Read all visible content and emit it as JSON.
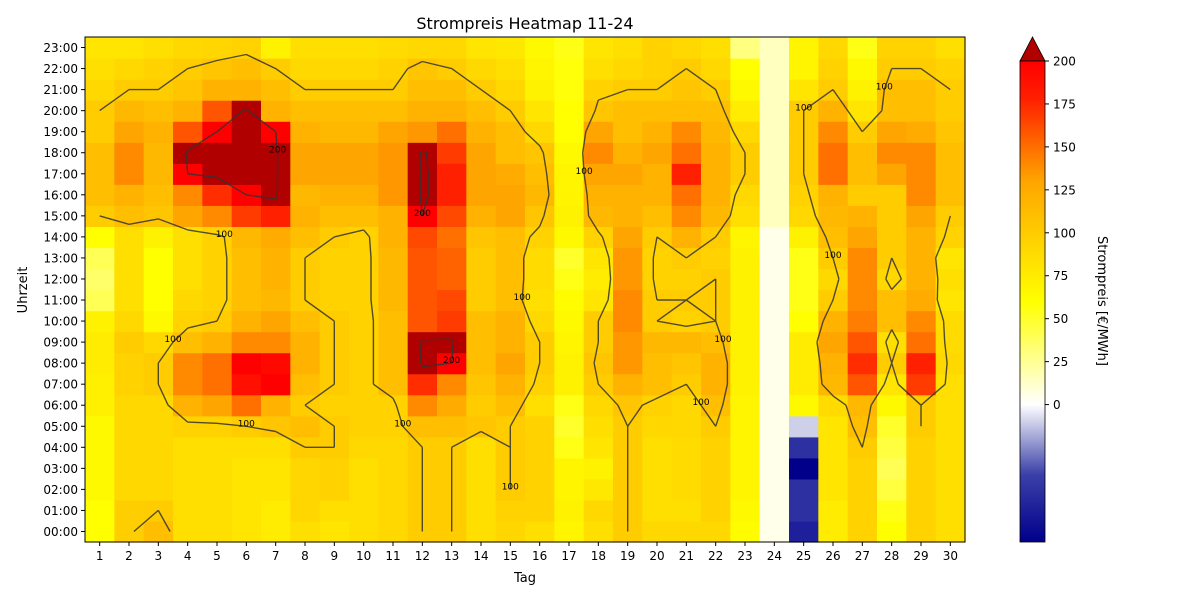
{
  "chart_data": {
    "type": "heatmap",
    "title": "Strompreis Heatmap 11-24",
    "xlabel": "Tag",
    "ylabel": "Uhrzeit",
    "colorbar_label": "Strompreis [€/MWh]",
    "x_categories": [
      "1",
      "2",
      "3",
      "4",
      "5",
      "6",
      "7",
      "8",
      "9",
      "10",
      "11",
      "12",
      "13",
      "14",
      "15",
      "16",
      "17",
      "18",
      "19",
      "20",
      "21",
      "22",
      "23",
      "24",
      "25",
      "26",
      "27",
      "28",
      "29",
      "30"
    ],
    "y_categories": [
      "00:00",
      "01:00",
      "02:00",
      "03:00",
      "04:00",
      "05:00",
      "06:00",
      "07:00",
      "08:00",
      "09:00",
      "10:00",
      "11:00",
      "12:00",
      "13:00",
      "14:00",
      "15:00",
      "16:00",
      "17:00",
      "18:00",
      "19:00",
      "20:00",
      "21:00",
      "22:00",
      "23:00"
    ],
    "colorbar_ticks": [
      "0",
      "25",
      "50",
      "75",
      "100",
      "125",
      "150",
      "175",
      "200"
    ],
    "colorbar_range": [
      -80,
      200
    ],
    "contour_levels": [
      100,
      200
    ],
    "contour_label_100": "100",
    "contour_label_200": "200",
    "colors": {
      "negative_low": "#00008b",
      "zero": "#ffffff",
      "mid": "#ffff00",
      "high": "#ff0000",
      "top": "#b00000"
    },
    "values": [
      [
        60,
        98,
        110,
        85,
        85,
        80,
        75,
        85,
        80,
        85,
        90,
        100,
        100,
        85,
        92,
        85,
        68,
        85,
        100,
        90,
        90,
        90,
        62,
        5,
        -60,
        75,
        95,
        60,
        95,
        85
      ],
      [
        60,
        98,
        100,
        85,
        85,
        80,
        75,
        92,
        85,
        85,
        90,
        100,
        100,
        85,
        95,
        95,
        70,
        90,
        100,
        85,
        85,
        95,
        65,
        5,
        -50,
        75,
        95,
        55,
        95,
        85
      ],
      [
        65,
        90,
        90,
        85,
        85,
        80,
        80,
        92,
        95,
        85,
        90,
        100,
        100,
        85,
        100,
        95,
        68,
        78,
        100,
        85,
        88,
        95,
        68,
        5,
        -50,
        80,
        95,
        45,
        95,
        85
      ],
      [
        65,
        90,
        90,
        85,
        85,
        80,
        80,
        92,
        95,
        85,
        90,
        100,
        100,
        85,
        100,
        95,
        68,
        70,
        100,
        85,
        88,
        95,
        68,
        5,
        -80,
        80,
        95,
        40,
        95,
        85
      ],
      [
        65,
        90,
        90,
        85,
        85,
        85,
        85,
        100,
        100,
        90,
        90,
        100,
        100,
        85,
        100,
        95,
        55,
        80,
        100,
        85,
        88,
        95,
        68,
        5,
        -50,
        80,
        100,
        45,
        95,
        85
      ],
      [
        65,
        90,
        90,
        95,
        95,
        100,
        105,
        110,
        100,
        95,
        95,
        110,
        110,
        105,
        100,
        95,
        50,
        85,
        100,
        90,
        90,
        100,
        68,
        5,
        -10,
        80,
        110,
        50,
        100,
        85
      ],
      [
        72,
        90,
        90,
        120,
        130,
        150,
        120,
        100,
        95,
        95,
        95,
        140,
        125,
        100,
        110,
        85,
        55,
        90,
        105,
        95,
        90,
        110,
        68,
        5,
        65,
        88,
        115,
        65,
        100,
        85
      ],
      [
        72,
        95,
        100,
        140,
        150,
        190,
        200,
        110,
        100,
        95,
        110,
        175,
        140,
        105,
        120,
        95,
        70,
        100,
        120,
        110,
        100,
        120,
        70,
        5,
        75,
        115,
        160,
        80,
        170,
        85
      ],
      [
        75,
        95,
        100,
        140,
        150,
        200,
        195,
        120,
        100,
        95,
        110,
        205,
        200,
        110,
        130,
        100,
        70,
        105,
        135,
        110,
        105,
        120,
        70,
        5,
        75,
        120,
        175,
        100,
        180,
        90
      ],
      [
        75,
        100,
        90,
        110,
        120,
        140,
        140,
        120,
        100,
        95,
        110,
        205,
        205,
        110,
        120,
        100,
        68,
        100,
        135,
        115,
        115,
        110,
        70,
        5,
        75,
        130,
        160,
        85,
        150,
        88
      ],
      [
        70,
        90,
        65,
        95,
        100,
        120,
        130,
        110,
        100,
        95,
        110,
        160,
        170,
        110,
        120,
        90,
        65,
        100,
        140,
        100,
        95,
        100,
        70,
        5,
        60,
        120,
        145,
        110,
        140,
        88
      ],
      [
        40,
        85,
        60,
        90,
        95,
        110,
        115,
        100,
        95,
        95,
        115,
        160,
        165,
        100,
        110,
        85,
        62,
        80,
        140,
        100,
        100,
        100,
        70,
        5,
        55,
        100,
        140,
        110,
        125,
        80
      ],
      [
        35,
        85,
        60,
        85,
        95,
        110,
        120,
        100,
        95,
        95,
        115,
        160,
        155,
        100,
        110,
        88,
        55,
        75,
        135,
        95,
        95,
        100,
        70,
        5,
        55,
        90,
        140,
        90,
        120,
        85
      ],
      [
        40,
        85,
        60,
        85,
        95,
        110,
        120,
        100,
        95,
        95,
        115,
        160,
        155,
        100,
        110,
        88,
        50,
        80,
        135,
        95,
        100,
        95,
        70,
        5,
        55,
        100,
        140,
        100,
        120,
        80
      ],
      [
        60,
        85,
        70,
        85,
        95,
        115,
        125,
        110,
        100,
        95,
        120,
        165,
        150,
        105,
        110,
        95,
        65,
        95,
        130,
        100,
        120,
        100,
        68,
        5,
        70,
        110,
        130,
        100,
        120,
        95
      ],
      [
        100,
        110,
        105,
        130,
        140,
        170,
        180,
        120,
        110,
        110,
        120,
        200,
        165,
        120,
        130,
        105,
        70,
        115,
        120,
        110,
        140,
        115,
        85,
        15,
        90,
        115,
        120,
        100,
        130,
        100
      ],
      [
        110,
        120,
        110,
        140,
        175,
        200,
        205,
        115,
        120,
        120,
        135,
        205,
        180,
        130,
        130,
        115,
        68,
        120,
        120,
        120,
        150,
        120,
        90,
        15,
        95,
        120,
        100,
        100,
        140,
        110
      ],
      [
        110,
        140,
        115,
        200,
        205,
        205,
        205,
        130,
        130,
        130,
        135,
        205,
        180,
        130,
        125,
        110,
        68,
        130,
        130,
        120,
        180,
        120,
        100,
        15,
        100,
        150,
        110,
        130,
        140,
        110
      ],
      [
        110,
        140,
        115,
        205,
        205,
        205,
        205,
        130,
        130,
        130,
        135,
        205,
        170,
        130,
        110,
        105,
        65,
        140,
        120,
        130,
        150,
        120,
        100,
        15,
        100,
        150,
        110,
        140,
        140,
        110
      ],
      [
        100,
        130,
        120,
        160,
        200,
        205,
        200,
        120,
        115,
        115,
        130,
        135,
        150,
        120,
        110,
        90,
        60,
        130,
        110,
        120,
        140,
        115,
        90,
        15,
        100,
        140,
        100,
        130,
        125,
        105
      ],
      [
        100,
        115,
        110,
        120,
        160,
        205,
        120,
        110,
        110,
        110,
        110,
        120,
        120,
        110,
        100,
        80,
        60,
        105,
        110,
        110,
        110,
        110,
        75,
        15,
        100,
        120,
        80,
        110,
        110,
        100
      ],
      [
        90,
        100,
        100,
        105,
        120,
        120,
        110,
        100,
        100,
        100,
        100,
        110,
        110,
        100,
        90,
        70,
        58,
        95,
        100,
        100,
        105,
        100,
        65,
        15,
        80,
        100,
        70,
        110,
        110,
        100
      ],
      [
        85,
        90,
        95,
        100,
        105,
        110,
        100,
        90,
        90,
        90,
        95,
        105,
        100,
        90,
        85,
        68,
        58,
        85,
        90,
        95,
        100,
        90,
        60,
        15,
        68,
        95,
        65,
        100,
        100,
        95
      ],
      [
        80,
        80,
        85,
        90,
        92,
        95,
        70,
        85,
        85,
        85,
        88,
        90,
        90,
        80,
        78,
        65,
        55,
        80,
        85,
        95,
        90,
        85,
        30,
        15,
        68,
        90,
        55,
        95,
        95,
        85
      ]
    ]
  }
}
